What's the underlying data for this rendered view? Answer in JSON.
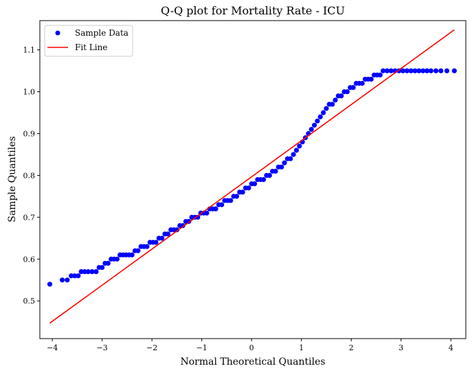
{
  "chart_data": {
    "type": "scatter",
    "title": "Q-Q plot for Mortality Rate - ICU",
    "xlabel": "Normal Theoretical Quantiles",
    "ylabel": "Sample Quantiles",
    "xlim": [
      -4.25,
      4.3
    ],
    "ylim": [
      0.41,
      1.17
    ],
    "xticks": [
      -4,
      -3,
      -2,
      -1,
      0,
      1,
      2,
      3,
      4
    ],
    "xtick_labels": [
      "−4",
      "−3",
      "−2",
      "−1",
      "0",
      "1",
      "2",
      "3",
      "4"
    ],
    "yticks": [
      0.5,
      0.6,
      0.7,
      0.8,
      0.9,
      1.0,
      1.1
    ],
    "ytick_labels": [
      "0.5",
      "0.6",
      "0.7",
      "0.8",
      "0.9",
      "1.0",
      "1.1"
    ],
    "grid": false,
    "legend_position": "top-left",
    "series": [
      {
        "name": "Sample Data",
        "kind": "scatter",
        "color": "#0000ff",
        "points": [
          [
            -4.05,
            0.54
          ],
          [
            -3.8,
            0.55
          ],
          [
            -3.7,
            0.55
          ],
          [
            -3.62,
            0.56
          ],
          [
            -3.55,
            0.56
          ],
          [
            -3.48,
            0.56
          ],
          [
            -3.42,
            0.57
          ],
          [
            -3.35,
            0.57
          ],
          [
            -3.28,
            0.57
          ],
          [
            -3.2,
            0.57
          ],
          [
            -3.12,
            0.57
          ],
          [
            -3.06,
            0.58
          ],
          [
            -3.0,
            0.58
          ],
          [
            -2.94,
            0.59
          ],
          [
            -2.88,
            0.59
          ],
          [
            -2.82,
            0.6
          ],
          [
            -2.76,
            0.6
          ],
          [
            -2.7,
            0.6
          ],
          [
            -2.64,
            0.61
          ],
          [
            -2.58,
            0.61
          ],
          [
            -2.52,
            0.61
          ],
          [
            -2.46,
            0.61
          ],
          [
            -2.4,
            0.61
          ],
          [
            -2.34,
            0.62
          ],
          [
            -2.28,
            0.62
          ],
          [
            -2.22,
            0.63
          ],
          [
            -2.16,
            0.63
          ],
          [
            -2.1,
            0.63
          ],
          [
            -2.04,
            0.64
          ],
          [
            -1.98,
            0.64
          ],
          [
            -1.92,
            0.64
          ],
          [
            -1.86,
            0.65
          ],
          [
            -1.8,
            0.65
          ],
          [
            -1.74,
            0.66
          ],
          [
            -1.68,
            0.66
          ],
          [
            -1.62,
            0.67
          ],
          [
            -1.56,
            0.67
          ],
          [
            -1.5,
            0.67
          ],
          [
            -1.44,
            0.68
          ],
          [
            -1.38,
            0.68
          ],
          [
            -1.32,
            0.69
          ],
          [
            -1.26,
            0.69
          ],
          [
            -1.2,
            0.7
          ],
          [
            -1.14,
            0.7
          ],
          [
            -1.08,
            0.7
          ],
          [
            -1.02,
            0.71
          ],
          [
            -0.96,
            0.71
          ],
          [
            -0.9,
            0.71
          ],
          [
            -0.84,
            0.72
          ],
          [
            -0.78,
            0.72
          ],
          [
            -0.72,
            0.72
          ],
          [
            -0.66,
            0.73
          ],
          [
            -0.6,
            0.73
          ],
          [
            -0.54,
            0.74
          ],
          [
            -0.48,
            0.74
          ],
          [
            -0.42,
            0.74
          ],
          [
            -0.36,
            0.75
          ],
          [
            -0.3,
            0.75
          ],
          [
            -0.24,
            0.76
          ],
          [
            -0.18,
            0.76
          ],
          [
            -0.12,
            0.77
          ],
          [
            -0.06,
            0.77
          ],
          [
            0.0,
            0.78
          ],
          [
            0.06,
            0.78
          ],
          [
            0.12,
            0.79
          ],
          [
            0.18,
            0.79
          ],
          [
            0.24,
            0.79
          ],
          [
            0.3,
            0.8
          ],
          [
            0.36,
            0.8
          ],
          [
            0.42,
            0.81
          ],
          [
            0.48,
            0.81
          ],
          [
            0.54,
            0.82
          ],
          [
            0.6,
            0.82
          ],
          [
            0.66,
            0.83
          ],
          [
            0.72,
            0.84
          ],
          [
            0.78,
            0.84
          ],
          [
            0.84,
            0.85
          ],
          [
            0.9,
            0.86
          ],
          [
            0.96,
            0.87
          ],
          [
            1.02,
            0.88
          ],
          [
            1.08,
            0.89
          ],
          [
            1.14,
            0.9
          ],
          [
            1.2,
            0.91
          ],
          [
            1.26,
            0.92
          ],
          [
            1.32,
            0.93
          ],
          [
            1.38,
            0.94
          ],
          [
            1.44,
            0.95
          ],
          [
            1.5,
            0.96
          ],
          [
            1.56,
            0.97
          ],
          [
            1.62,
            0.97
          ],
          [
            1.68,
            0.98
          ],
          [
            1.74,
            0.99
          ],
          [
            1.8,
            0.99
          ],
          [
            1.86,
            1.0
          ],
          [
            1.92,
            1.0
          ],
          [
            1.98,
            1.01
          ],
          [
            2.04,
            1.01
          ],
          [
            2.1,
            1.02
          ],
          [
            2.16,
            1.02
          ],
          [
            2.22,
            1.02
          ],
          [
            2.28,
            1.03
          ],
          [
            2.34,
            1.03
          ],
          [
            2.4,
            1.03
          ],
          [
            2.46,
            1.04
          ],
          [
            2.52,
            1.04
          ],
          [
            2.58,
            1.04
          ],
          [
            2.64,
            1.05
          ],
          [
            2.72,
            1.05
          ],
          [
            2.8,
            1.05
          ],
          [
            2.88,
            1.05
          ],
          [
            2.96,
            1.05
          ],
          [
            3.04,
            1.05
          ],
          [
            3.12,
            1.05
          ],
          [
            3.2,
            1.05
          ],
          [
            3.28,
            1.05
          ],
          [
            3.36,
            1.05
          ],
          [
            3.44,
            1.05
          ],
          [
            3.52,
            1.05
          ],
          [
            3.6,
            1.05
          ],
          [
            3.7,
            1.05
          ],
          [
            3.8,
            1.05
          ],
          [
            3.92,
            1.05
          ],
          [
            4.07,
            1.05
          ]
        ]
      },
      {
        "name": "Fit Line",
        "kind": "line",
        "color": "#ff0000",
        "points": [
          [
            -4.05,
            0.447
          ],
          [
            4.07,
            1.148
          ]
        ]
      }
    ]
  }
}
